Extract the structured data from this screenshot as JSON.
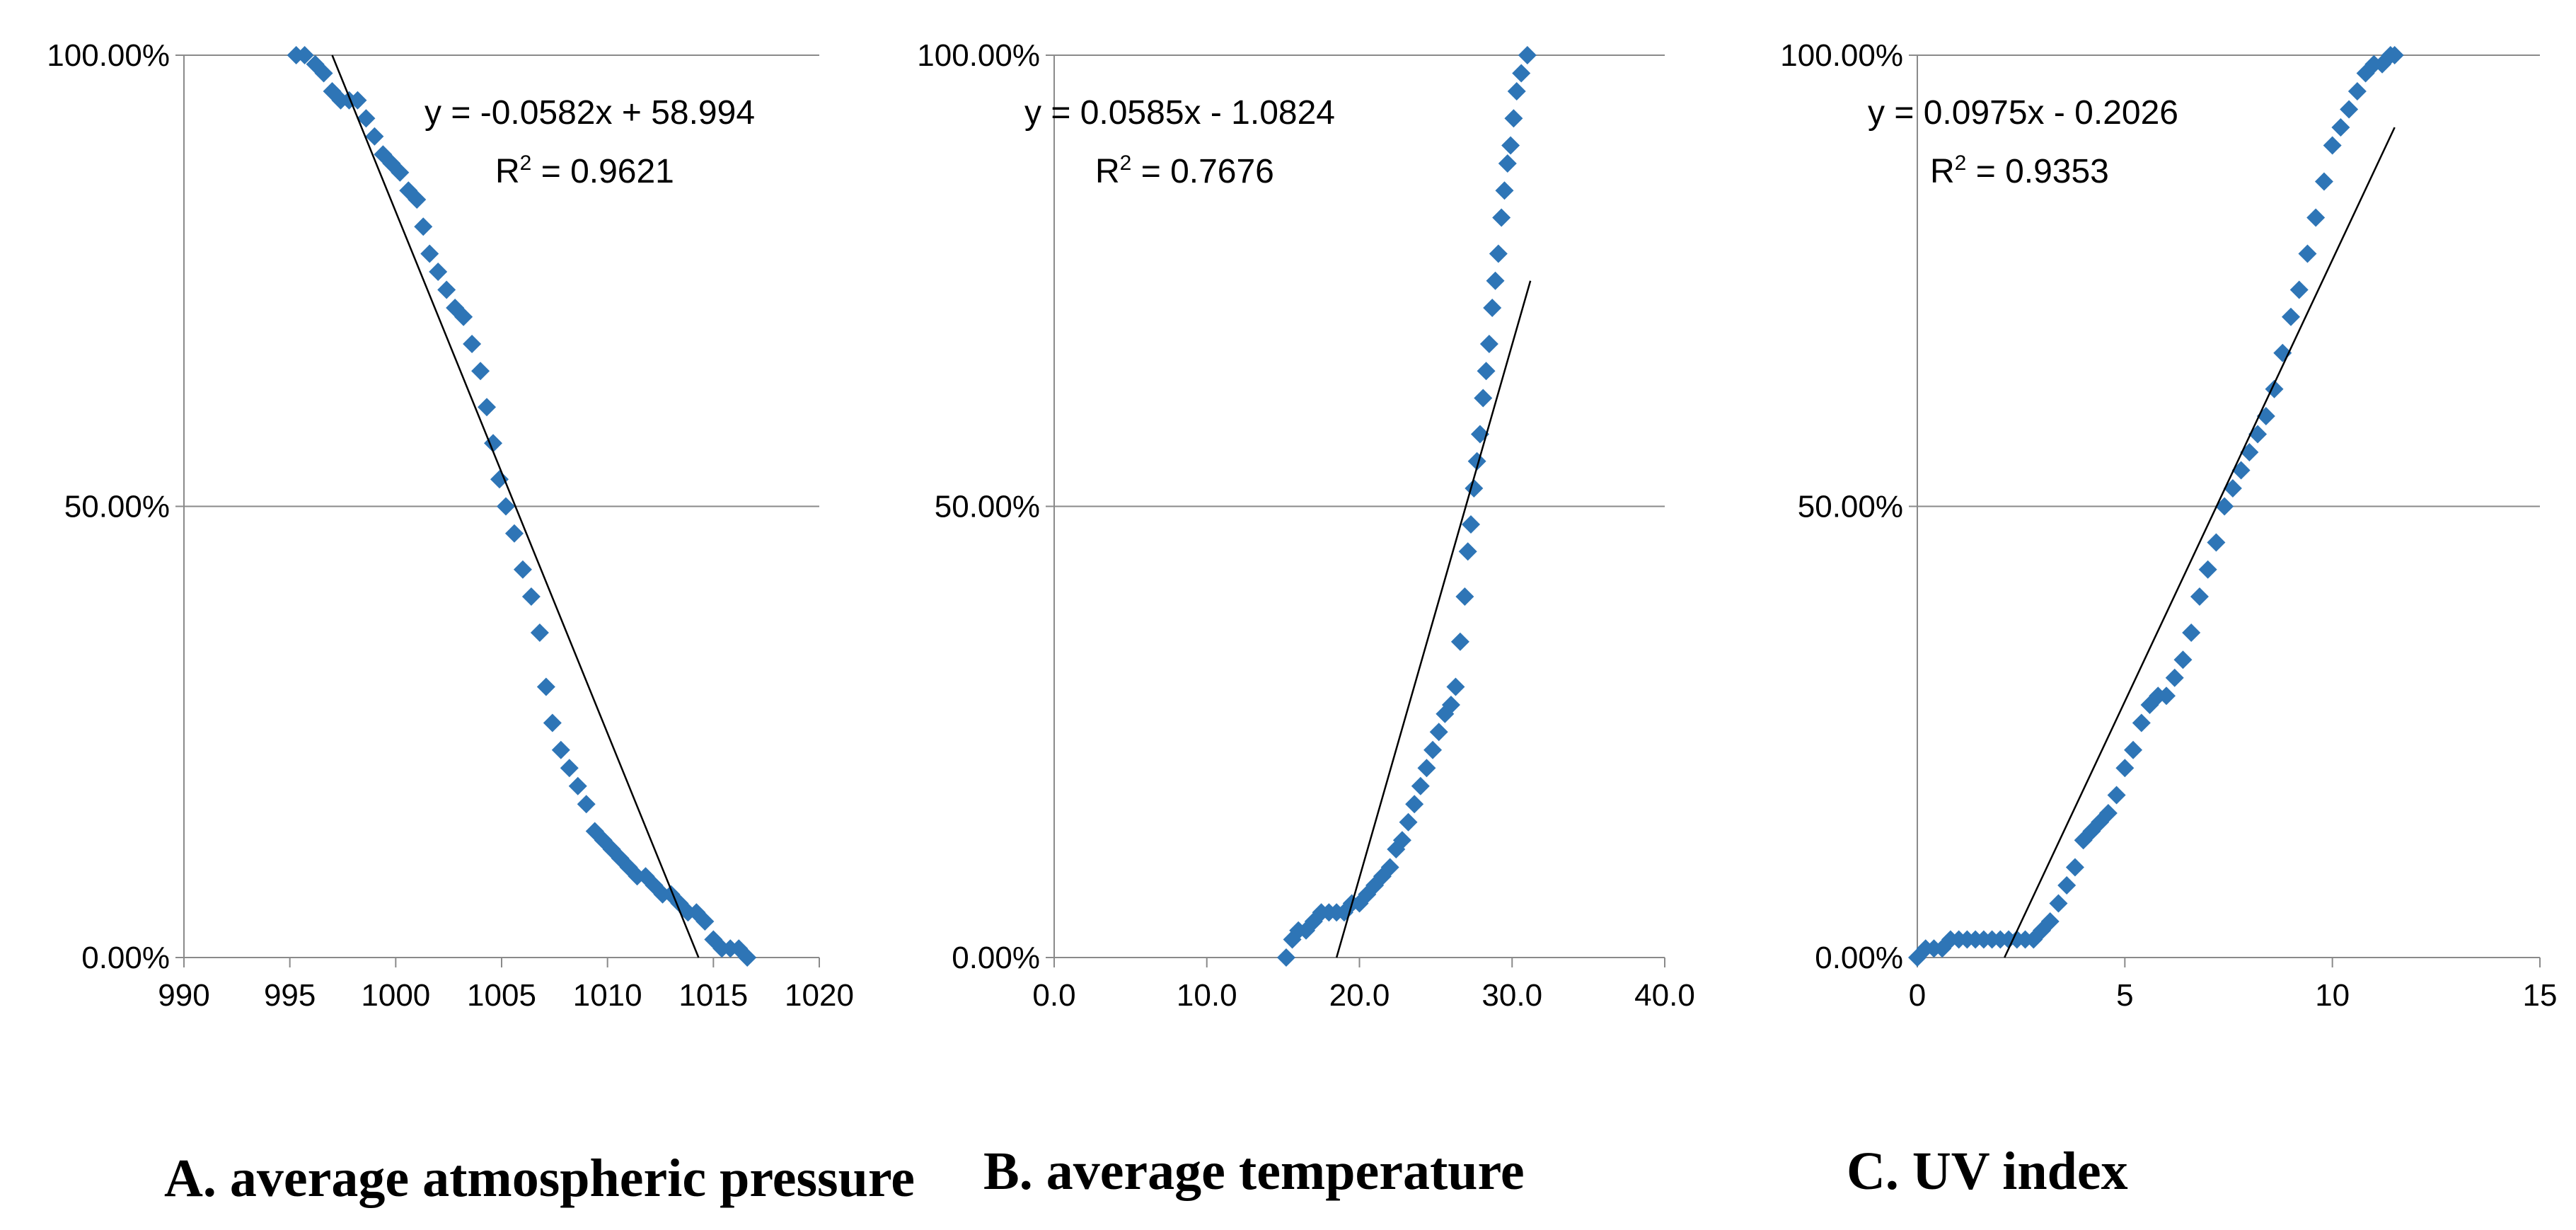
{
  "chart_data": [
    {
      "type": "scatter",
      "caption": "A. average atmospheric pressure",
      "xlim": [
        990,
        1020
      ],
      "ylim": [
        0,
        100
      ],
      "x_ticks": [
        "990",
        "995",
        "1000",
        "1005",
        "1010",
        "1015",
        "1020"
      ],
      "x_tick_values": [
        990,
        995,
        1000,
        1005,
        1010,
        1015,
        1020
      ],
      "y_ticks": [
        "0.00%",
        "50.00%",
        "100.00%"
      ],
      "y_tick_values": [
        0,
        50,
        100
      ],
      "grid": "horizontal",
      "marker_color": "#2E75B6",
      "equation": "y = -0.0582x + 58.994",
      "r2_prefix": "R",
      "r2_value": " = 0.9621",
      "trendline": {
        "x": [
          997,
          1014.3
        ],
        "y": [
          100,
          0
        ]
      },
      "points": {
        "x": [
          995.3,
          995.7,
          996.2,
          996.6,
          997.0,
          997.4,
          997.8,
          998.2,
          998.6,
          999.0,
          999.4,
          999.8,
          1000.2,
          1000.6,
          1001.0,
          1001.3,
          1001.6,
          1002.0,
          1002.4,
          1002.8,
          1003.2,
          1003.6,
          1004.0,
          1004.3,
          1004.6,
          1004.9,
          1005.2,
          1005.6,
          1006.0,
          1006.4,
          1006.8,
          1007.1,
          1007.4,
          1007.8,
          1008.2,
          1008.6,
          1009.0,
          1009.4,
          1009.8,
          1010.2,
          1010.6,
          1011.0,
          1011.4,
          1011.8,
          1012.2,
          1012.6,
          1013.0,
          1013.4,
          1013.8,
          1014.2,
          1014.6,
          1015.0,
          1015.4,
          1015.8,
          1016.2,
          1016.6
        ],
        "y": [
          100,
          100,
          99,
          98,
          96,
          95,
          95,
          95,
          93,
          91,
          89,
          88,
          87,
          85,
          84,
          81,
          78,
          76,
          74,
          72,
          71,
          68,
          65,
          61,
          57,
          53,
          50,
          47,
          43,
          40,
          36,
          30,
          26,
          23,
          21,
          19,
          17,
          14,
          13,
          12,
          11,
          10,
          9,
          9,
          8,
          7,
          7,
          6,
          5,
          5,
          4,
          2,
          1,
          1,
          1,
          0
        ]
      }
    },
    {
      "type": "scatter",
      "caption": "B. average temperature",
      "xlim": [
        0,
        40
      ],
      "ylim": [
        0,
        100
      ],
      "x_ticks": [
        "0.0",
        "10.0",
        "20.0",
        "30.0",
        "40.0"
      ],
      "x_tick_values": [
        0,
        10,
        20,
        30,
        40
      ],
      "y_ticks": [
        "0.00%",
        "50.00%",
        "100.00%"
      ],
      "y_tick_values": [
        0,
        50,
        100
      ],
      "grid": "horizontal",
      "marker_color": "#2E75B6",
      "equation": "y = 0.0585x - 1.0824",
      "r2_prefix": "R",
      "r2_value": " = 0.7676",
      "trendline": {
        "x": [
          18.5,
          31.2
        ],
        "y": [
          0,
          75
        ]
      },
      "points": {
        "x": [
          15.2,
          15.6,
          16.0,
          16.5,
          17.0,
          17.5,
          18.0,
          18.5,
          19.0,
          19.5,
          20.0,
          20.5,
          21.0,
          21.5,
          22.0,
          22.4,
          22.8,
          23.2,
          23.6,
          24.0,
          24.4,
          24.8,
          25.2,
          25.6,
          26.0,
          26.3,
          26.6,
          26.9,
          27.1,
          27.3,
          27.5,
          27.7,
          27.9,
          28.1,
          28.3,
          28.5,
          28.7,
          28.9,
          29.1,
          29.3,
          29.5,
          29.7,
          29.9,
          30.1,
          30.3,
          30.6,
          31.0
        ],
        "y": [
          0,
          2,
          3,
          3,
          4,
          5,
          5,
          5,
          5,
          6,
          6,
          7,
          8,
          9,
          10,
          12,
          13,
          15,
          17,
          19,
          21,
          23,
          25,
          27,
          28,
          30,
          35,
          40,
          45,
          48,
          52,
          55,
          58,
          62,
          65,
          68,
          72,
          75,
          78,
          82,
          85,
          88,
          90,
          93,
          96,
          98,
          100
        ]
      }
    },
    {
      "type": "scatter",
      "caption": "C. UV index",
      "xlim": [
        0,
        15
      ],
      "ylim": [
        0,
        100
      ],
      "x_ticks": [
        "0",
        "5",
        "10",
        "15"
      ],
      "x_tick_values": [
        0,
        5,
        10,
        15
      ],
      "y_ticks": [
        "0.00%",
        "50.00%",
        "100.00%"
      ],
      "y_tick_values": [
        0,
        50,
        100
      ],
      "grid": "horizontal",
      "marker_color": "#2E75B6",
      "equation": "y = 0.0975x - 0.2026",
      "r2_prefix": "R",
      "r2_value": " = 0.9353",
      "trendline": {
        "x": [
          2.1,
          11.5
        ],
        "y": [
          0,
          92
        ]
      },
      "points": {
        "x": [
          0.0,
          0.2,
          0.4,
          0.6,
          0.8,
          1.0,
          1.2,
          1.4,
          1.6,
          1.8,
          2.0,
          2.2,
          2.4,
          2.6,
          2.8,
          3.0,
          3.2,
          3.4,
          3.6,
          3.8,
          4.0,
          4.2,
          4.4,
          4.6,
          4.8,
          5.0,
          5.2,
          5.4,
          5.6,
          5.8,
          6.0,
          6.2,
          6.4,
          6.6,
          6.8,
          7.0,
          7.2,
          7.4,
          7.6,
          7.8,
          8.0,
          8.2,
          8.4,
          8.6,
          8.8,
          9.0,
          9.2,
          9.4,
          9.6,
          9.8,
          10.0,
          10.2,
          10.4,
          10.6,
          10.8,
          11.0,
          11.2,
          11.4,
          11.5
        ],
        "y": [
          0,
          1,
          1,
          1,
          2,
          2,
          2,
          2,
          2,
          2,
          2,
          2,
          2,
          2,
          2,
          3,
          4,
          6,
          8,
          10,
          13,
          14,
          15,
          16,
          18,
          21,
          23,
          26,
          28,
          29,
          29,
          31,
          33,
          36,
          40,
          43,
          46,
          50,
          52,
          54,
          56,
          58,
          60,
          63,
          67,
          71,
          74,
          78,
          82,
          86,
          90,
          92,
          94,
          96,
          98,
          99,
          99,
          100,
          100
        ]
      }
    }
  ]
}
